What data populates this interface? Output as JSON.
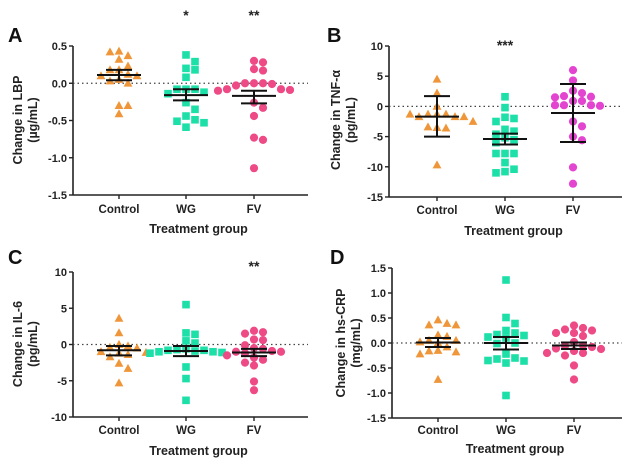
{
  "colors": {
    "Control": "#f0963a",
    "WG": "#1de0a8",
    "FV_pink": "#ee4a86",
    "FV_magenta": "#e445d0",
    "axis": "#222222"
  },
  "chart_data": [
    {
      "type": "scatter",
      "panel": "A",
      "title": "",
      "xlabel": "Treatment group",
      "ylabel": "Change in LBP",
      "ylabel_unit": "(µg/mL)",
      "ylim": [
        -1.5,
        0.5
      ],
      "yticks": [
        0.5,
        0.0,
        -0.5,
        -1.0,
        -1.5
      ],
      "ytick_labels": [
        "0.5",
        "0.0",
        "-0.5",
        "-1.0",
        "-1.5"
      ],
      "reference_line": 0,
      "categories": [
        "Control",
        "WG",
        "FV"
      ],
      "significance": [
        "",
        "*",
        "**"
      ],
      "error_bar_type": "mean ± SEM",
      "series": [
        {
          "name": "Control",
          "marker": "triangle",
          "color_key": "Control",
          "values": [
            0.43,
            0.37,
            0.42,
            0.32,
            0.23,
            0.18,
            0.18,
            0.12,
            0.1,
            0.1,
            0.05,
            0.03,
            0.0,
            -0.3,
            -0.3,
            -0.41
          ],
          "mean": 0.11,
          "err_low": 0.04,
          "err_high": 0.18
        },
        {
          "name": "WG",
          "marker": "square",
          "color_key": "WG",
          "values": [
            0.38,
            0.29,
            0.2,
            0.18,
            0.08,
            -0.08,
            -0.08,
            -0.08,
            -0.12,
            -0.14,
            -0.26,
            -0.35,
            -0.44,
            -0.49,
            -0.51,
            -0.53,
            -0.59
          ],
          "mean": -0.16,
          "err_low": -0.23,
          "err_high": -0.08
        },
        {
          "name": "FV",
          "marker": "circle",
          "color_key": "FV_pink",
          "values": [
            0.3,
            0.28,
            0.19,
            0.17,
            0.0,
            0.0,
            0.0,
            -0.01,
            -0.03,
            -0.08,
            -0.08,
            -0.09,
            -0.1,
            -0.26,
            -0.33,
            -0.44,
            -0.73,
            -0.76,
            -1.14
          ],
          "mean": -0.17,
          "err_low": -0.27,
          "err_high": -0.1
        }
      ]
    },
    {
      "type": "scatter",
      "panel": "B",
      "title": "",
      "xlabel": "Treatment group",
      "ylabel": "Change in TNF-α",
      "ylabel_unit": "(pg/mL)",
      "ylim": [
        -15,
        10
      ],
      "yticks": [
        10,
        5,
        0,
        -5,
        -10,
        -15
      ],
      "ytick_labels": [
        "10",
        "5",
        "0",
        "-5",
        "-10",
        "-15"
      ],
      "reference_line": 0,
      "categories": [
        "Control",
        "WG",
        "FV"
      ],
      "significance": [
        "",
        "***",
        ""
      ],
      "error_bar_type": "mean ± SD",
      "series": [
        {
          "name": "Control",
          "marker": "triangle",
          "color_key": "Control",
          "values": [
            4.5,
            2.2,
            0.0,
            -1.3,
            -1.3,
            -1.3,
            -1.7,
            -1.7,
            -1.7,
            -1.3,
            -2.5,
            -3.5,
            -3.6,
            -3.4,
            -9.7
          ],
          "mean": -1.7,
          "err_low": -5.0,
          "err_high": 1.7
        },
        {
          "name": "WG",
          "marker": "square",
          "color_key": "WG",
          "values": [
            1.6,
            -0.2,
            -1.8,
            -2.0,
            -2.5,
            -3.8,
            -4.1,
            -4.6,
            -5.2,
            -5.5,
            -6.0,
            -7.8,
            -7.8,
            -7.8,
            -9.3,
            -10.4,
            -10.8,
            -11.0
          ],
          "mean": -5.4,
          "err_low": -6.3,
          "err_high": -4.5
        },
        {
          "name": "FV",
          "marker": "circle",
          "color_key": "FV_magenta",
          "values": [
            6.0,
            4.3,
            2.6,
            2.2,
            1.7,
            1.6,
            1.5,
            0.9,
            0.9,
            0.2,
            0.2,
            0.2,
            0.1,
            -2.5,
            -3.3,
            -5.0,
            -5.6,
            -10.1,
            -12.8
          ],
          "mean": -1.1,
          "err_low": -5.9,
          "err_high": 3.7
        }
      ]
    },
    {
      "type": "scatter",
      "panel": "C",
      "title": "",
      "xlabel": "Treatment group",
      "ylabel": "Change in IL-6",
      "ylabel_unit": "(pg/mL)",
      "ylim": [
        -10,
        10
      ],
      "yticks": [
        10,
        5,
        0,
        -5,
        -10
      ],
      "ytick_labels": [
        "10",
        "5",
        "0",
        "-5",
        "-10"
      ],
      "reference_line": 0,
      "categories": [
        "Control",
        "WG",
        "FV"
      ],
      "significance": [
        "",
        "",
        "**"
      ],
      "error_bar_type": "mean ± SEM",
      "series": [
        {
          "name": "Control",
          "marker": "triangle",
          "color_key": "Control",
          "values": [
            3.6,
            1.6,
            0.0,
            -0.2,
            -0.4,
            -0.5,
            -1.0,
            -1.2,
            -1.1,
            -1.4,
            -1.7,
            -2.6,
            -3.3,
            -5.3
          ],
          "mean": -0.8,
          "err_low": -1.5,
          "err_high": -0.2
        },
        {
          "name": "WG",
          "marker": "square",
          "color_key": "WG",
          "values": [
            5.5,
            1.6,
            1.4,
            0.5,
            0.2,
            -0.6,
            -0.7,
            -0.8,
            -0.8,
            -0.9,
            -1.0,
            -1.0,
            -1.1,
            -1.2,
            -3.1,
            -4.7,
            -7.7
          ],
          "mean": -0.9,
          "err_low": -1.6,
          "err_high": -0.2
        },
        {
          "name": "FV",
          "marker": "circle",
          "color_key": "FV_pink",
          "values": [
            1.9,
            1.7,
            1.5,
            0.7,
            0.6,
            -0.1,
            -0.5,
            -0.6,
            -0.9,
            -1.0,
            -1.0,
            -1.2,
            -1.5,
            -1.8,
            -2.1,
            -2.5,
            -2.9,
            -5.1,
            -6.3
          ],
          "mean": -1.1,
          "err_low": -1.6,
          "err_high": -0.6
        }
      ]
    },
    {
      "type": "scatter",
      "panel": "D",
      "title": "",
      "xlabel": "Treatment group",
      "ylabel": "Change in hs-CRP",
      "ylabel_unit": "(mg/mL)",
      "ylim": [
        -1.5,
        1.5
      ],
      "yticks": [
        1.5,
        1.0,
        0.5,
        0.0,
        -0.5,
        -1.0,
        -1.5
      ],
      "ytick_labels": [
        "1.5",
        "1.0",
        "0.5",
        "0.0",
        "-0.5",
        "-1.0",
        "-1.5"
      ],
      "reference_line": 0,
      "categories": [
        "Control",
        "WG",
        "FV"
      ],
      "significance": [
        "",
        "",
        ""
      ],
      "error_bar_type": "mean ± SEM",
      "series": [
        {
          "name": "Control",
          "marker": "triangle",
          "color_key": "Control",
          "values": [
            0.46,
            0.39,
            0.36,
            0.36,
            0.16,
            0.13,
            0.05,
            0.05,
            0.02,
            0.0,
            -0.08,
            -0.15,
            -0.16,
            -0.18,
            -0.22,
            -0.73
          ],
          "mean": 0.01,
          "err_low": -0.08,
          "err_high": 0.1
        },
        {
          "name": "WG",
          "marker": "square",
          "color_key": "WG",
          "values": [
            1.26,
            0.51,
            0.39,
            0.25,
            0.2,
            0.17,
            0.15,
            0.12,
            0.1,
            0.0,
            -0.01,
            -0.22,
            -0.3,
            -0.32,
            -0.36,
            -0.4,
            -0.35,
            -1.05
          ],
          "mean": 0.0,
          "err_low": -0.13,
          "err_high": 0.12
        },
        {
          "name": "FV",
          "marker": "circle",
          "color_key": "FV_pink",
          "values": [
            0.35,
            0.3,
            0.27,
            0.25,
            0.2,
            0.2,
            0.14,
            0.02,
            -0.05,
            -0.06,
            -0.08,
            -0.11,
            -0.12,
            -0.16,
            -0.2,
            -0.2,
            -0.25,
            -0.45,
            -0.73
          ],
          "mean": -0.05,
          "err_low": -0.12,
          "err_high": 0.01
        }
      ]
    }
  ]
}
